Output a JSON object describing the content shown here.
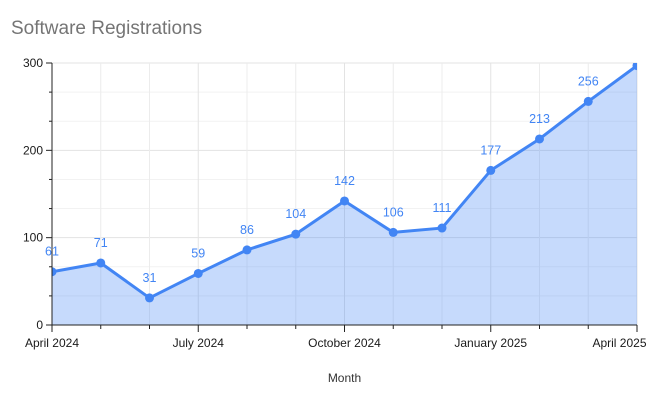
{
  "title": "Software Registrations",
  "x_axis_title": "Month",
  "colors": {
    "series": "#4285f4",
    "fill": "rgba(66,133,244,0.30)",
    "grid_major": "#e3e3e3",
    "grid_month": "#ececec",
    "grid_minor": "#f2f2f2",
    "axis": "#222222",
    "tick_text": "#1a1a1a",
    "title_text": "#757575",
    "label_text": "#4285f4"
  },
  "chart_data": {
    "type": "area",
    "x": [
      "April 2024",
      "May 2024",
      "June 2024",
      "July 2024",
      "August 2024",
      "September 2024",
      "October 2024",
      "November 2024",
      "December 2024",
      "January 2025",
      "February 2025",
      "March 2025",
      "April 2025"
    ],
    "values": [
      61,
      71,
      31,
      59,
      86,
      104,
      142,
      106,
      111,
      177,
      213,
      256,
      297
    ],
    "point_labels": [
      "61",
      "71",
      "31",
      "59",
      "86",
      "104",
      "142",
      "106",
      "111",
      "177",
      "213",
      "256",
      ""
    ],
    "title": "Software Registrations",
    "xlabel": "Month",
    "ylabel": "",
    "ylim": [
      0,
      300
    ],
    "y_ticks": [
      0,
      100,
      200,
      300
    ],
    "y_minor_step": 33.333,
    "x_tick_labels": [
      "April 2024",
      "July 2024",
      "October 2024",
      "January 2025",
      "April 2025"
    ],
    "x_tick_indices": [
      0,
      3,
      6,
      9,
      12
    ],
    "grid": true,
    "legend": "none"
  }
}
